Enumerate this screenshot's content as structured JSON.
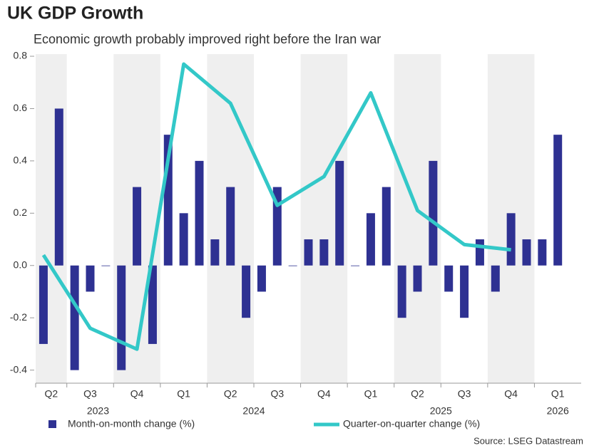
{
  "chart_data": {
    "type": "bar_line",
    "title": "UK GDP Growth",
    "subtitle": "Economic growth probably improved right before the Iran war",
    "source": "Source: LSEG Datastream",
    "quarters": [
      "Q2",
      "Q3",
      "Q4",
      "Q1",
      "Q2",
      "Q3",
      "Q4",
      "Q1",
      "Q2",
      "Q3",
      "Q4",
      "Q1"
    ],
    "years": [
      "2023",
      "2024",
      "2025",
      "2026"
    ],
    "ylim": [
      -0.45,
      0.8
    ],
    "yticks": [
      {
        "value": -0.4,
        "label": "-0.4"
      },
      {
        "value": -0.2,
        "label": "-0.2"
      },
      {
        "value": 0,
        "label": "0.0"
      },
      0.2,
      0.4,
      0.6,
      0.8
    ],
    "bars": {
      "name": "Month-on-month change (%)",
      "color": "#2e3192",
      "values": [
        -0.3,
        0.6,
        -0.4,
        -0.1,
        0.0,
        -0.4,
        0.3,
        -0.3,
        0.5,
        0.2,
        0.4,
        0.1,
        0.3,
        -0.2,
        -0.1,
        0.3,
        0.0,
        0.1,
        0.1,
        0.4,
        0.0,
        0.2,
        0.3,
        -0.2,
        -0.1,
        0.4,
        -0.1,
        -0.2,
        0.1,
        -0.1,
        0.2,
        0.1,
        0.1,
        0.5
      ]
    },
    "line": {
      "name": "Quarter-on-quarter change (%)",
      "color": "#33c8c8",
      "values": [
        0.04,
        -0.24,
        -0.32,
        0.77,
        0.62,
        0.23,
        0.34,
        0.66,
        0.21,
        0.08,
        0.06,
        null
      ]
    }
  }
}
